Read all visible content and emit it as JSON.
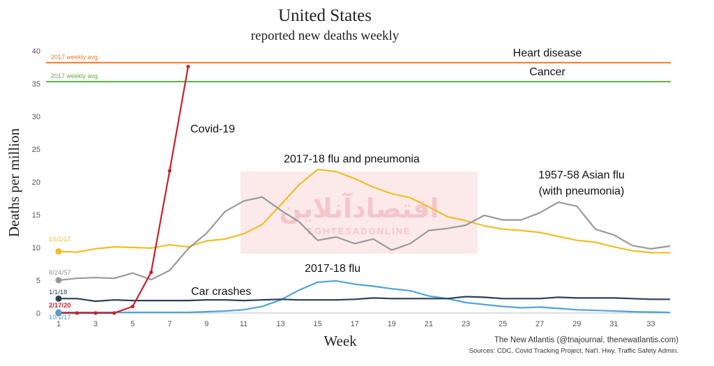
{
  "chart_data": {
    "type": "line",
    "title": "United States",
    "subtitle": "reported new deaths weekly",
    "xlabel": "Week",
    "ylabel": "Deaths per million",
    "xlim": [
      1,
      34
    ],
    "ylim": [
      0,
      40
    ],
    "x_ticks": [
      1,
      3,
      5,
      7,
      9,
      11,
      13,
      15,
      17,
      19,
      21,
      23,
      25,
      27,
      29,
      31,
      33
    ],
    "y_ticks": [
      0,
      5,
      10,
      15,
      20,
      25,
      30,
      35,
      40
    ],
    "grid": false,
    "reference_lines": [
      {
        "name": "Heart disease",
        "y": 38.2,
        "color": "#f07a2a",
        "tag": "2017 weekly avg."
      },
      {
        "name": "Cancer",
        "y": 35.3,
        "color": "#5cb13e",
        "tag": "2017 weekly avg."
      }
    ],
    "series": [
      {
        "name": "Covid-19",
        "color": "#c8202a",
        "start_label": "2/17/20",
        "x": [
          1,
          2,
          3,
          4,
          5,
          6,
          7,
          8
        ],
        "y": [
          0,
          0,
          0,
          0,
          1.0,
          6.2,
          21.7,
          37.6
        ]
      },
      {
        "name": "2017-18 flu and pneumonia",
        "color": "#f2bd25",
        "start_label": "10/1/17",
        "x": [
          1,
          2,
          3,
          4,
          5,
          6,
          7,
          8,
          9,
          10,
          11,
          12,
          13,
          14,
          15,
          16,
          17,
          18,
          19,
          20,
          21,
          22,
          23,
          24,
          25,
          26,
          27,
          28,
          29,
          30,
          31,
          32,
          33,
          34
        ],
        "y": [
          9.4,
          9.3,
          9.8,
          10.1,
          10.0,
          9.9,
          10.4,
          10.1,
          11.0,
          11.3,
          12.1,
          13.5,
          16.5,
          19.6,
          21.9,
          21.6,
          20.5,
          19.2,
          18.2,
          17.6,
          16.2,
          14.7,
          14.1,
          13.3,
          12.8,
          12.6,
          12.3,
          11.7,
          11.1,
          10.8,
          10.1,
          9.5,
          9.2,
          9.2
        ]
      },
      {
        "name": "1957-58 Asian flu (with pneumonia)",
        "label_lines": [
          "1957-58 Asian flu",
          "(with pneumonia)"
        ],
        "color": "#999999",
        "start_label": "8/24/57",
        "x": [
          1,
          2,
          3,
          4,
          5,
          6,
          7,
          8,
          9,
          10,
          11,
          12,
          13,
          14,
          15,
          16,
          17,
          18,
          19,
          20,
          21,
          22,
          23,
          24,
          25,
          26,
          27,
          28,
          29,
          30,
          31,
          32,
          33,
          34
        ],
        "y": [
          5.0,
          5.3,
          5.4,
          5.3,
          6.1,
          5.1,
          6.5,
          9.8,
          12.2,
          15.5,
          17.1,
          17.7,
          15.7,
          13.9,
          11.1,
          11.6,
          10.6,
          11.3,
          9.6,
          10.6,
          12.6,
          12.9,
          13.4,
          14.9,
          14.2,
          14.2,
          15.3,
          16.9,
          16.3,
          12.8,
          11.9,
          10.3,
          9.8,
          10.2
        ]
      },
      {
        "name": "2017-18 flu",
        "color": "#4fa3d6",
        "start_label": "10/1/17",
        "x": [
          1,
          2,
          3,
          4,
          5,
          6,
          7,
          8,
          9,
          10,
          11,
          12,
          13,
          14,
          15,
          16,
          17,
          18,
          19,
          20,
          21,
          22,
          23,
          24,
          25,
          26,
          27,
          28,
          29,
          30,
          31,
          32,
          33,
          34
        ],
        "y": [
          0.1,
          0.1,
          0.1,
          0.1,
          0.1,
          0.1,
          0.1,
          0.1,
          0.2,
          0.3,
          0.5,
          1.0,
          2.0,
          3.5,
          4.7,
          4.9,
          4.4,
          4.1,
          3.7,
          3.4,
          2.6,
          2.2,
          1.6,
          1.3,
          1.0,
          0.8,
          0.9,
          0.7,
          0.5,
          0.4,
          0.3,
          0.2,
          0.15,
          0.1
        ]
      },
      {
        "name": "Car crashes",
        "color": "#2c3e55",
        "start_label": "1/1/18",
        "x": [
          1,
          2,
          3,
          4,
          5,
          6,
          7,
          8,
          9,
          10,
          11,
          12,
          13,
          14,
          15,
          16,
          17,
          18,
          19,
          20,
          21,
          22,
          23,
          24,
          25,
          26,
          27,
          28,
          29,
          30,
          31,
          32,
          33,
          34
        ],
        "y": [
          2.2,
          2.2,
          1.8,
          2.0,
          1.9,
          1.9,
          1.9,
          1.9,
          2.0,
          2.0,
          1.9,
          2.0,
          2.1,
          2.0,
          2.0,
          2.0,
          2.1,
          2.3,
          2.2,
          2.2,
          2.2,
          2.2,
          2.5,
          2.4,
          2.2,
          2.2,
          2.2,
          2.4,
          2.3,
          2.3,
          2.3,
          2.2,
          2.1,
          2.1
        ]
      }
    ],
    "series_labels": {
      "covid": "Covid-19",
      "flu_pneumonia": "2017-18 flu and pneumonia",
      "asian_flu_1": "1957-58 Asian flu",
      "asian_flu_2": "(with pneumonia)",
      "flu": "2017-18 flu",
      "car": "Car crashes"
    }
  },
  "credit": "The New Atlantis (@tnajournal, thenewatlantis.com)",
  "sources": "Sources: CDC, Covid Tracking Project, Nat'l. Hwy. Traffic Safety Admin.",
  "watermark": {
    "line1": "اقتصادآنلاین",
    "line2": "EGHTESADONLINE",
    "color": "#f6c9cc"
  }
}
